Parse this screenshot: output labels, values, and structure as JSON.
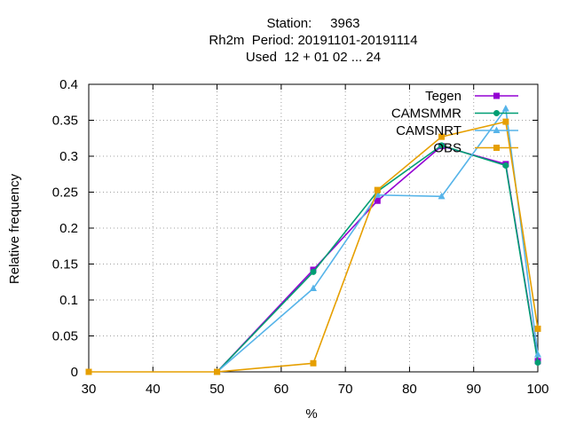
{
  "chart_data": {
    "type": "line",
    "title_lines": [
      "Station:     3963",
      "Rh2m  Period: 20191101-20191114",
      "Used  12 + 01 02 ... 24"
    ],
    "xlabel": "%",
    "ylabel": "Relative frequency",
    "xlim": [
      30,
      100
    ],
    "ylim": [
      0,
      0.4
    ],
    "xticks": [
      30,
      40,
      50,
      60,
      70,
      80,
      90,
      100
    ],
    "yticks": [
      0,
      0.05,
      0.1,
      0.15,
      0.2,
      0.25,
      0.3,
      0.35,
      0.4
    ],
    "ytick_labels": [
      "0",
      "0.05",
      "0.1",
      "0.15",
      "0.2",
      "0.25",
      "0.3",
      "0.35",
      "0.4"
    ],
    "grid": true,
    "legend_position": "top-right",
    "series": [
      {
        "name": "Tegen",
        "color": "#9400d3",
        "marker": "filled-square",
        "x": [
          50,
          65,
          75,
          85,
          95,
          100
        ],
        "y": [
          0,
          0.142,
          0.238,
          0.314,
          0.289,
          0.015
        ]
      },
      {
        "name": "CAMSMMR",
        "color": "#009e73",
        "marker": "filled-circle",
        "x": [
          50,
          65,
          75,
          85,
          95,
          100
        ],
        "y": [
          0,
          0.139,
          0.251,
          0.315,
          0.287,
          0.013
        ]
      },
      {
        "name": "CAMSNRT",
        "color": "#56b4e9",
        "marker": "filled-triangle",
        "x": [
          50,
          65,
          75,
          85,
          95,
          100
        ],
        "y": [
          0,
          0.116,
          0.246,
          0.244,
          0.366,
          0.024
        ]
      },
      {
        "name": "OBS",
        "color": "#e69f00",
        "marker": "filled-square",
        "x": [
          30,
          50,
          65,
          75,
          85,
          95,
          100
        ],
        "y": [
          0,
          0,
          0.012,
          0.253,
          0.327,
          0.348,
          0.06
        ]
      }
    ]
  }
}
